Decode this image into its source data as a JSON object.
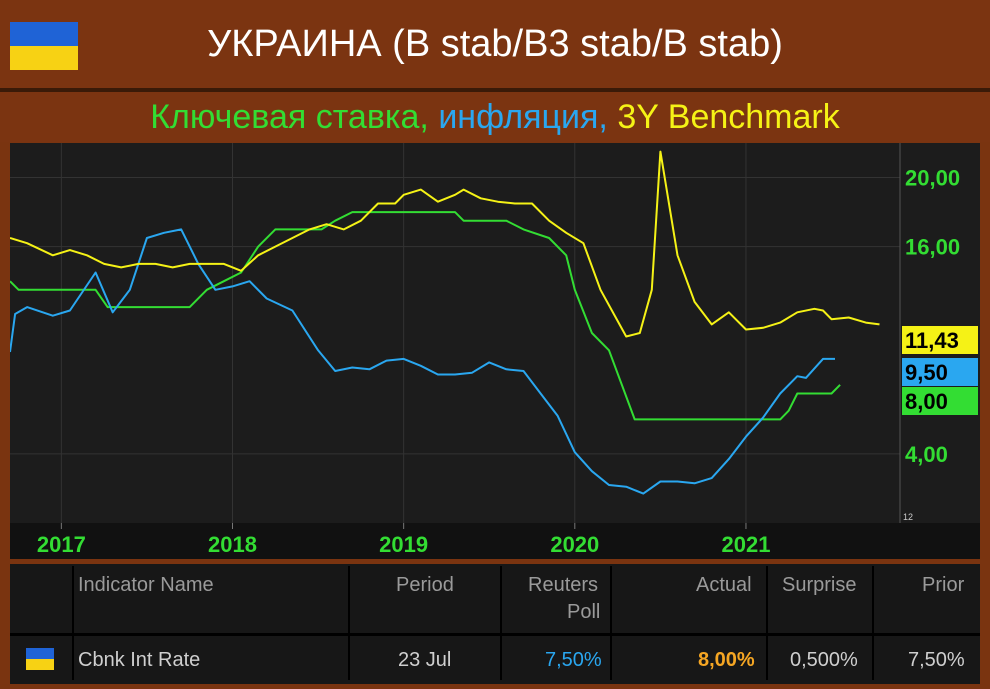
{
  "header": {
    "title": "УКРАИНА (B stab/B3 stab/B stab)",
    "subtitle_key": "Ключевая ставка,",
    "subtitle_infl": "инфляция,",
    "subtitle_bench": "3Y Benchmark",
    "flag_colors": [
      "#1f63d6",
      "#f7d214"
    ]
  },
  "chart_data": {
    "type": "line",
    "x_ticks": [
      "2017",
      "2018",
      "2019",
      "2020",
      "2021"
    ],
    "y_ticks": [
      "4,00",
      "16,00",
      "20,00"
    ],
    "y_range": [
      0,
      22
    ],
    "axis_note": "12",
    "series": [
      {
        "color": "#33dd33",
        "end_label": "8,00",
        "points": [
          [
            2016.7,
            14.0
          ],
          [
            2016.75,
            13.5
          ],
          [
            2017.2,
            13.5
          ],
          [
            2017.27,
            12.5
          ],
          [
            2017.35,
            12.5
          ],
          [
            2017.4,
            12.5
          ],
          [
            2017.7,
            12.5
          ],
          [
            2017.75,
            12.5
          ],
          [
            2017.85,
            13.5
          ],
          [
            2017.95,
            14.0
          ],
          [
            2018.05,
            14.5
          ],
          [
            2018.15,
            16.0
          ],
          [
            2018.25,
            17.0
          ],
          [
            2018.4,
            17.0
          ],
          [
            2018.52,
            17.0
          ],
          [
            2018.6,
            17.5
          ],
          [
            2018.7,
            18.0
          ],
          [
            2019.0,
            18.0
          ],
          [
            2019.2,
            18.0
          ],
          [
            2019.3,
            18.0
          ],
          [
            2019.35,
            17.5
          ],
          [
            2019.5,
            17.5
          ],
          [
            2019.6,
            17.5
          ],
          [
            2019.7,
            17.0
          ],
          [
            2019.85,
            16.5
          ],
          [
            2019.95,
            15.5
          ],
          [
            2020.0,
            13.5
          ],
          [
            2020.1,
            11.0
          ],
          [
            2020.2,
            10.0
          ],
          [
            2020.35,
            6.0
          ],
          [
            2020.45,
            6.0
          ],
          [
            2021.0,
            6.0
          ],
          [
            2021.2,
            6.0
          ],
          [
            2021.25,
            6.5
          ],
          [
            2021.3,
            7.5
          ],
          [
            2021.35,
            7.5
          ],
          [
            2021.5,
            7.5
          ],
          [
            2021.55,
            8.0
          ]
        ]
      },
      {
        "color": "#2aa7f0",
        "end_label": "9,50",
        "points": [
          [
            2016.7,
            9.9
          ],
          [
            2016.73,
            12.1
          ],
          [
            2016.8,
            12.5
          ],
          [
            2016.95,
            12.0
          ],
          [
            2017.05,
            12.3
          ],
          [
            2017.2,
            14.5
          ],
          [
            2017.3,
            12.2
          ],
          [
            2017.4,
            13.5
          ],
          [
            2017.5,
            16.5
          ],
          [
            2017.6,
            16.8
          ],
          [
            2017.7,
            17.0
          ],
          [
            2017.8,
            15.0
          ],
          [
            2017.9,
            13.5
          ],
          [
            2018.0,
            13.7
          ],
          [
            2018.1,
            14.0
          ],
          [
            2018.2,
            13.0
          ],
          [
            2018.35,
            12.3
          ],
          [
            2018.5,
            10.0
          ],
          [
            2018.6,
            8.8
          ],
          [
            2018.7,
            9.0
          ],
          [
            2018.8,
            8.9
          ],
          [
            2018.9,
            9.4
          ],
          [
            2019.0,
            9.5
          ],
          [
            2019.1,
            9.1
          ],
          [
            2019.2,
            8.6
          ],
          [
            2019.3,
            8.6
          ],
          [
            2019.4,
            8.7
          ],
          [
            2019.5,
            9.3
          ],
          [
            2019.6,
            8.9
          ],
          [
            2019.7,
            8.8
          ],
          [
            2019.8,
            7.5
          ],
          [
            2019.9,
            6.2
          ],
          [
            2020.0,
            4.1
          ],
          [
            2020.1,
            3.0
          ],
          [
            2020.2,
            2.2
          ],
          [
            2020.3,
            2.1
          ],
          [
            2020.4,
            1.7
          ],
          [
            2020.5,
            2.4
          ],
          [
            2020.6,
            2.4
          ],
          [
            2020.7,
            2.3
          ],
          [
            2020.8,
            2.6
          ],
          [
            2020.9,
            3.7
          ],
          [
            2021.0,
            5.0
          ],
          [
            2021.1,
            6.1
          ],
          [
            2021.2,
            7.5
          ],
          [
            2021.3,
            8.5
          ],
          [
            2021.35,
            8.4
          ],
          [
            2021.45,
            9.5
          ],
          [
            2021.52,
            9.5
          ]
        ]
      },
      {
        "color": "#f5f216",
        "end_label": "11,43",
        "points": [
          [
            2016.7,
            16.5
          ],
          [
            2016.8,
            16.2
          ],
          [
            2016.95,
            15.5
          ],
          [
            2017.05,
            15.8
          ],
          [
            2017.15,
            15.5
          ],
          [
            2017.25,
            15.0
          ],
          [
            2017.35,
            14.8
          ],
          [
            2017.45,
            15.0
          ],
          [
            2017.55,
            15.0
          ],
          [
            2017.65,
            14.8
          ],
          [
            2017.75,
            15.0
          ],
          [
            2017.85,
            15.0
          ],
          [
            2017.95,
            15.0
          ],
          [
            2018.05,
            14.6
          ],
          [
            2018.15,
            15.5
          ],
          [
            2018.25,
            16.0
          ],
          [
            2018.35,
            16.5
          ],
          [
            2018.45,
            17.0
          ],
          [
            2018.55,
            17.3
          ],
          [
            2018.65,
            17.0
          ],
          [
            2018.75,
            17.5
          ],
          [
            2018.85,
            18.5
          ],
          [
            2018.95,
            18.5
          ],
          [
            2019.0,
            19.0
          ],
          [
            2019.1,
            19.3
          ],
          [
            2019.2,
            18.6
          ],
          [
            2019.3,
            19.0
          ],
          [
            2019.35,
            19.3
          ],
          [
            2019.45,
            18.8
          ],
          [
            2019.55,
            18.6
          ],
          [
            2019.65,
            18.5
          ],
          [
            2019.75,
            18.5
          ],
          [
            2019.85,
            17.5
          ],
          [
            2019.95,
            16.8
          ],
          [
            2020.05,
            16.2
          ],
          [
            2020.15,
            13.5
          ],
          [
            2020.25,
            11.7
          ],
          [
            2020.3,
            10.8
          ],
          [
            2020.38,
            11.0
          ],
          [
            2020.45,
            13.5
          ],
          [
            2020.5,
            21.5
          ],
          [
            2020.6,
            15.5
          ],
          [
            2020.7,
            12.8
          ],
          [
            2020.8,
            11.5
          ],
          [
            2020.9,
            12.2
          ],
          [
            2021.0,
            11.2
          ],
          [
            2021.1,
            11.3
          ],
          [
            2021.2,
            11.6
          ],
          [
            2021.3,
            12.2
          ],
          [
            2021.4,
            12.4
          ],
          [
            2021.45,
            12.3
          ],
          [
            2021.5,
            11.8
          ],
          [
            2021.6,
            11.9
          ],
          [
            2021.7,
            11.6
          ],
          [
            2021.78,
            11.5
          ]
        ]
      }
    ]
  },
  "table": {
    "headers": {
      "name": "Indicator Name",
      "period": "Period",
      "poll_1": "Reuters",
      "poll_2": "Poll",
      "actual": "Actual",
      "surprise": "Surprise",
      "prior": "Prior"
    },
    "row": {
      "name": "Cbnk Int Rate",
      "period": "23 Jul",
      "poll": "7,50%",
      "actual": "8,00%",
      "surprise": "0,500%",
      "prior": "7,50%"
    },
    "colors": {
      "poll": "#2aa7f0",
      "actual": "#f5a623"
    }
  }
}
